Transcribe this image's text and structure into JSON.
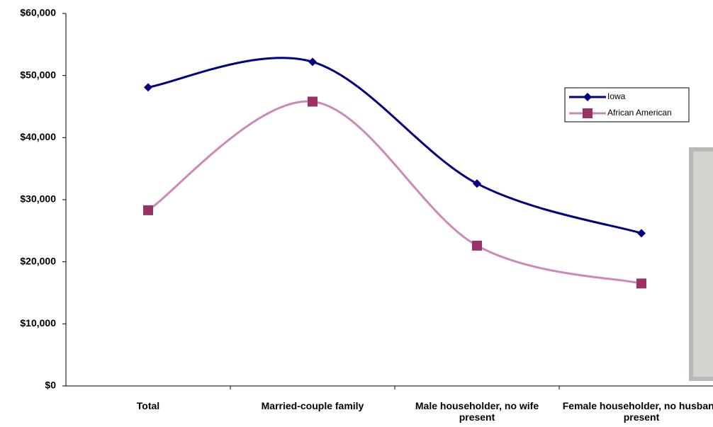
{
  "chart_data": {
    "type": "line",
    "categories": [
      "Total",
      "Married-couple family",
      "Male householder, no wife present",
      "Female householder, no husband present"
    ],
    "series": [
      {
        "name": "Iowa",
        "color": "#000080",
        "marker": "diamond",
        "values": [
          48100,
          52200,
          32600,
          24600
        ]
      },
      {
        "name": "African American",
        "color": "#993366",
        "line_color": "#cc88bb",
        "marker": "square",
        "values": [
          28300,
          45800,
          22600,
          16500
        ]
      }
    ],
    "ylim": [
      0,
      60000
    ],
    "yticks": [
      {
        "value": 0,
        "label": "$0"
      },
      {
        "value": 10000,
        "label": "$10,000"
      },
      {
        "value": 20000,
        "label": "$20,000"
      },
      {
        "value": 30000,
        "label": "$30,000"
      },
      {
        "value": 40000,
        "label": "$40,000"
      },
      {
        "value": 50000,
        "label": "$50,000"
      },
      {
        "value": 60000,
        "label": "$60,000"
      }
    ],
    "smooth": true
  }
}
